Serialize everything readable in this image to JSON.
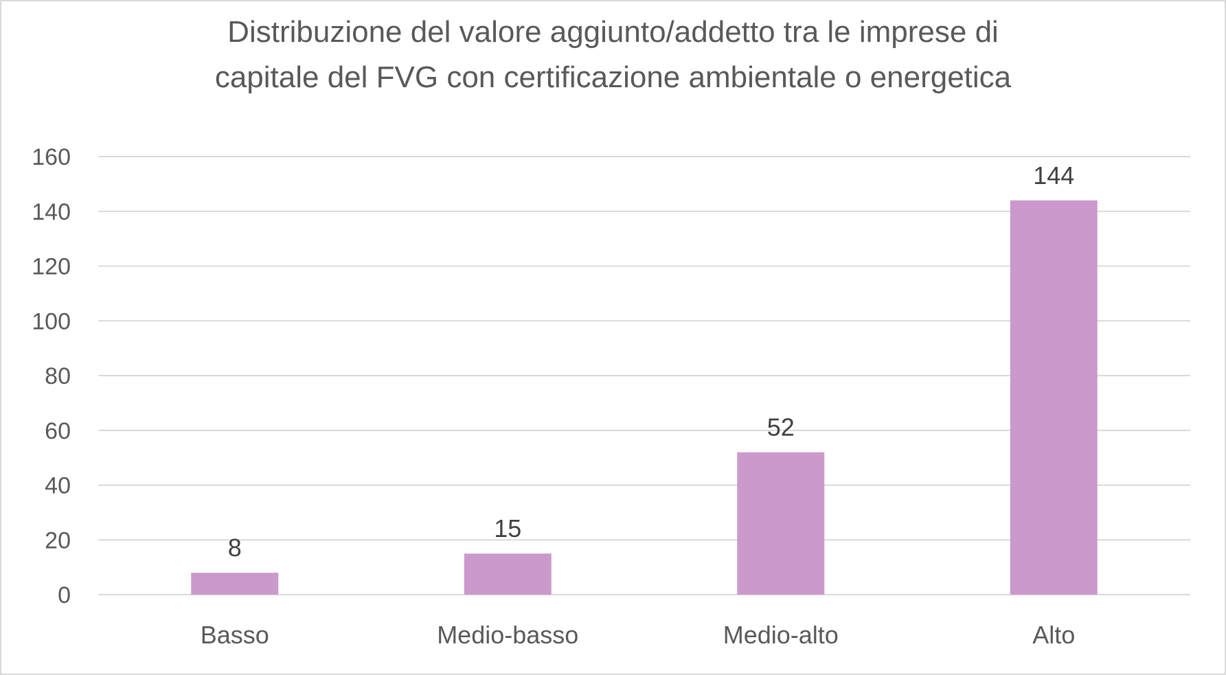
{
  "chart_data": {
    "type": "bar",
    "title_lines": [
      "Distribuzione del valore aggiunto/addetto tra le imprese di",
      "capitale del FVG con certificazione ambientale o energetica"
    ],
    "categories": [
      "Basso",
      "Medio-basso",
      "Medio-alto",
      "Alto"
    ],
    "values": [
      8,
      15,
      52,
      144
    ],
    "data_labels": [
      "8",
      "15",
      "52",
      "144"
    ],
    "ylim": [
      0,
      160
    ],
    "yticks": [
      0,
      20,
      40,
      60,
      80,
      100,
      120,
      140,
      160
    ],
    "grid": true,
    "legend": "none",
    "colors": {
      "bar": "#cc99cc",
      "grid": "#d9d9d9",
      "text": "#595959",
      "label": "#404040"
    }
  }
}
